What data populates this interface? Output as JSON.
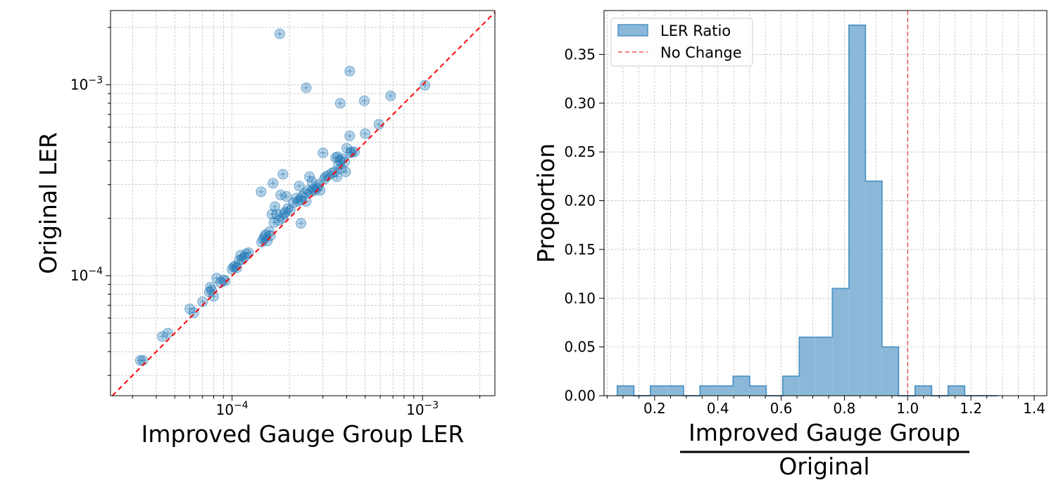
{
  "chart_data": [
    {
      "type": "scatter",
      "xlabel": "Improved Gauge Group LER",
      "ylabel": "Original LER",
      "xscale": "log",
      "yscale": "log",
      "xlim": [
        2.3e-05,
        0.0024
      ],
      "ylim": [
        2.35e-05,
        0.00245
      ],
      "x_ticks": [
        {
          "value": 0.0001,
          "base": "10",
          "exp": "−4"
        },
        {
          "value": 0.001,
          "base": "10",
          "exp": "−3"
        }
      ],
      "y_ticks": [
        {
          "value": 0.0001,
          "base": "10",
          "exp": "−4"
        },
        {
          "value": 0.001,
          "base": "10",
          "exp": "−3"
        }
      ],
      "grid": true,
      "colors": {
        "points": "#1f77b4",
        "reference_line": "#ff0000"
      },
      "reference_line": "y = x",
      "points": [
        [
          3.3e-05,
          3.6e-05
        ],
        [
          3.4e-05,
          3.6e-05
        ],
        [
          4.3e-05,
          4.8e-05
        ],
        [
          4.6e-05,
          5e-05
        ],
        [
          6e-05,
          6.7e-05
        ],
        [
          6.3e-05,
          6.4e-05
        ],
        [
          7e-05,
          7.3e-05
        ],
        [
          7.6e-05,
          8.2e-05
        ],
        [
          7.7e-05,
          8.7e-05
        ],
        [
          7.8e-05,
          8.4e-05
        ],
        [
          8e-05,
          7.8e-05
        ],
        [
          8.3e-05,
          9.7e-05
        ],
        [
          8.7e-05,
          9.2e-05
        ],
        [
          9e-05,
          9.5e-05
        ],
        [
          9.2e-05,
          9.4e-05
        ],
        [
          0.0001,
          0.000108
        ],
        [
          0.000102,
          0.000111
        ],
        [
          0.000104,
          0.000112
        ],
        [
          0.000106,
          0.00011
        ],
        [
          0.000109,
          0.00012
        ],
        [
          0.000111,
          0.000128
        ],
        [
          0.000113,
          0.000122
        ],
        [
          0.000116,
          0.000125
        ],
        [
          0.000119,
          0.00013
        ],
        [
          0.000122,
          0.000132
        ],
        [
          0.000143,
          0.00015
        ],
        [
          0.000146,
          0.000155
        ],
        [
          0.000148,
          0.00016
        ],
        [
          0.00015,
          0.000164
        ],
        [
          0.000153,
          0.000152
        ],
        [
          0.000157,
          0.00017
        ],
        [
          0.000159,
          0.000162
        ],
        [
          0.000142,
          0.000275
        ],
        [
          0.000162,
          0.00021
        ],
        [
          0.000166,
          0.00019
        ],
        [
          0.000168,
          0.00023
        ],
        [
          0.000164,
          0.000305
        ],
        [
          0.000172,
          0.00021
        ],
        [
          0.000176,
          0.000195
        ],
        [
          0.00018,
          0.000265
        ],
        [
          0.000184,
          0.0002
        ],
        [
          0.000187,
          0.00021
        ],
        [
          0.000185,
          0.00034
        ],
        [
          0.00019,
          0.000215
        ],
        [
          0.000193,
          0.00026
        ],
        [
          0.000196,
          0.000225
        ],
        [
          0.000202,
          0.00022
        ],
        [
          0.00021,
          0.00024
        ],
        [
          0.000218,
          0.000255
        ],
        [
          0.000222,
          0.000245
        ],
        [
          0.000225,
          0.000295
        ],
        [
          0.000228,
          0.00025
        ],
        [
          0.000233,
          0.00026
        ],
        [
          0.00023,
          0.000188
        ],
        [
          0.000241,
          0.00027
        ],
        [
          0.000245,
          0.000245
        ],
        [
          0.00025,
          0.00028
        ],
        [
          0.000255,
          0.00033
        ],
        [
          0.00026,
          0.000275
        ],
        [
          0.000263,
          0.00031
        ],
        [
          0.000268,
          0.000285
        ],
        [
          0.000272,
          0.00028
        ],
        [
          0.00028,
          0.00029
        ],
        [
          0.000285,
          0.0003
        ],
        [
          0.00029,
          0.00028
        ],
        [
          0.0003,
          0.00044
        ],
        [
          0.000305,
          0.00032
        ],
        [
          0.00031,
          0.00033
        ],
        [
          0.00032,
          0.000335
        ],
        [
          0.000335,
          0.000345
        ],
        [
          0.000345,
          0.00035
        ],
        [
          0.00035,
          0.000415
        ],
        [
          0.000355,
          0.00033
        ],
        [
          0.000358,
          0.00042
        ],
        [
          0.000362,
          0.00038
        ],
        [
          0.00037,
          0.0004
        ],
        [
          0.000374,
          0.000365
        ],
        [
          0.000378,
          0.00041
        ],
        [
          0.00039,
          0.000395
        ],
        [
          0.000395,
          0.00035
        ],
        [
          0.0004,
          0.000465
        ],
        [
          0.000418,
          0.00044
        ],
        [
          0.000425,
          0.000445
        ],
        [
          0.00044,
          0.000445
        ],
        [
          0.000415,
          0.00054
        ],
        [
          0.0005,
          0.000555
        ],
        [
          0.00059,
          0.00062
        ],
        [
          0.00037,
          0.0008
        ],
        [
          0.000495,
          0.000825
        ],
        [
          0.00068,
          0.000875
        ],
        [
          0.00103,
          0.000995
        ],
        [
          0.000245,
          0.000965
        ],
        [
          0.000415,
          0.00118
        ],
        [
          0.000178,
          0.00185
        ]
      ]
    },
    {
      "type": "histogram",
      "ylabel": "Proportion",
      "xlabel_numerator": "Improved Gauge Group",
      "xlabel_denominator": "Original",
      "xlim": [
        0.04,
        1.44
      ],
      "ylim": [
        0,
        0.395
      ],
      "x_ticks": [
        "0.2",
        "0.4",
        "0.6",
        "0.8",
        "1.0",
        "1.2",
        "1.4"
      ],
      "y_ticks": [
        "0.00",
        "0.05",
        "0.10",
        "0.15",
        "0.20",
        "0.25",
        "0.30",
        "0.35"
      ],
      "grid": true,
      "legend": {
        "position": "top-left",
        "entries": [
          "LER Ratio",
          "No Change"
        ]
      },
      "colors": {
        "bar_fill": "#8bb8d8",
        "bar_edge": "#4f94c4",
        "no_change_line": "#f25555"
      },
      "no_change_x": 1.0,
      "bin_start": 0.082,
      "bin_width": 0.0523,
      "proportions": [
        0.01,
        0,
        0.01,
        0.01,
        0,
        0.01,
        0.01,
        0.02,
        0.01,
        0,
        0.02,
        0.06,
        0.06,
        0.11,
        0.38,
        0.22,
        0.05,
        0,
        0.01,
        0,
        0.01,
        0,
        0
      ]
    }
  ]
}
